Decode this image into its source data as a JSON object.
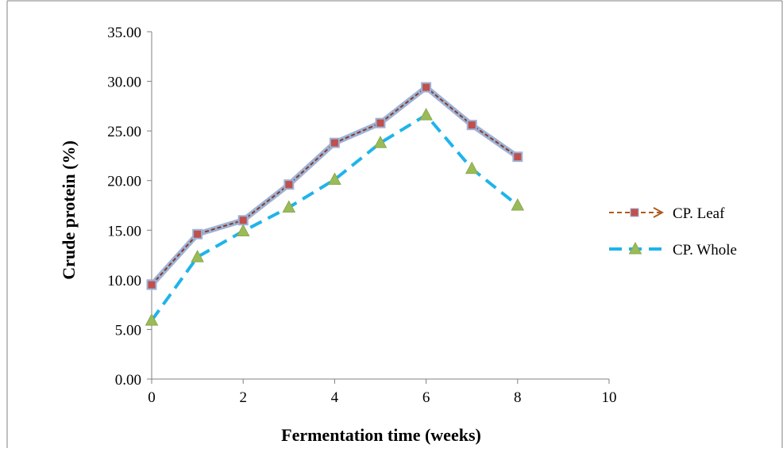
{
  "chart_data": {
    "type": "line",
    "title": "",
    "xlabel": "Fermentation time (weeks)",
    "ylabel": "Crude protein (%)",
    "xlim": [
      0,
      10
    ],
    "ylim": [
      0,
      35
    ],
    "x_ticks": [
      "0",
      "2",
      "4",
      "6",
      "8",
      "10"
    ],
    "y_ticks": [
      "0.00",
      "5.00",
      "10.00",
      "15.00",
      "20.00",
      "25.00",
      "30.00",
      "35.00"
    ],
    "grid": false,
    "legend_position": "right",
    "series": [
      {
        "name": "CP. Leaf",
        "color": "#8b3a2a",
        "marker": "square",
        "marker_color": "#c0504d",
        "x": [
          0,
          1,
          2,
          3,
          4,
          5,
          6,
          7,
          8
        ],
        "y": [
          9.5,
          14.6,
          16.0,
          19.6,
          23.8,
          25.8,
          29.4,
          25.6,
          22.4
        ]
      },
      {
        "name": "CP. Whole",
        "color": "#1eb4ea",
        "marker": "triangle",
        "marker_color": "#9bbb59",
        "x": [
          0,
          1,
          2,
          3,
          4,
          5,
          6,
          7,
          8
        ],
        "y": [
          5.9,
          12.3,
          14.9,
          17.3,
          20.1,
          23.8,
          26.6,
          21.2,
          17.5
        ]
      }
    ]
  }
}
